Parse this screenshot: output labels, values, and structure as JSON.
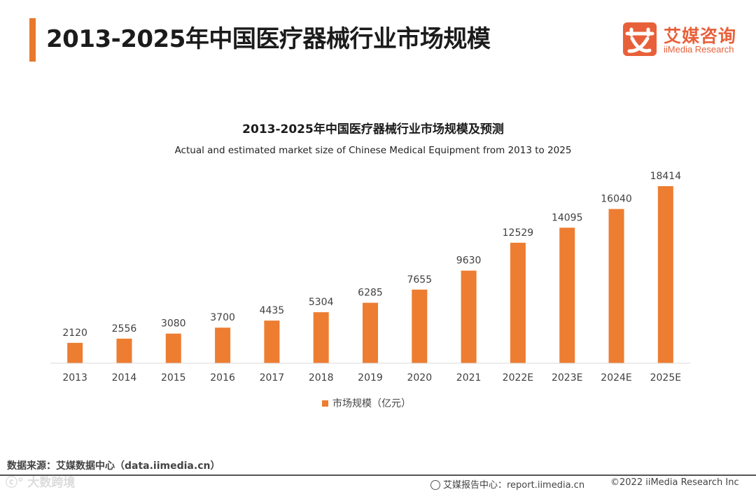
{
  "header": {
    "title": "2013-2025年中国医疗器械行业市场规模",
    "logo_cn": "艾媒咨询",
    "logo_en": "iiMedia Research",
    "accent_color": "#e8782b",
    "brand_color": "#e8603a"
  },
  "chart_data": {
    "type": "bar",
    "title": "2013-2025年中国医疗器械行业市场规模及预测",
    "subtitle": "Actual and estimated market size of Chinese Medical Equipment from 2013 to 2025",
    "categories": [
      "2013",
      "2014",
      "2015",
      "2016",
      "2017",
      "2018",
      "2019",
      "2020",
      "2021",
      "2022E",
      "2023E",
      "2024E",
      "2025E"
    ],
    "series": [
      {
        "name": "市场规模（亿元）",
        "color": "#ed7d31",
        "values": [
          2120,
          2556,
          3080,
          3700,
          4435,
          5304,
          6285,
          7655,
          9630,
          12529,
          14095,
          16040,
          18414
        ]
      }
    ],
    "xlabel": "",
    "ylabel": "",
    "ylim": [
      0,
      20000
    ],
    "grid": false,
    "legend": "bottom-center"
  },
  "footer": {
    "source": "数据来源：艾媒数据中心（data.iimedia.cn）",
    "watermark": "ⓒ° 大数跨境",
    "report": "艾媒报告中心：report.iimedia.cn",
    "copyright": "©2022 iiMedia Research Inc"
  }
}
